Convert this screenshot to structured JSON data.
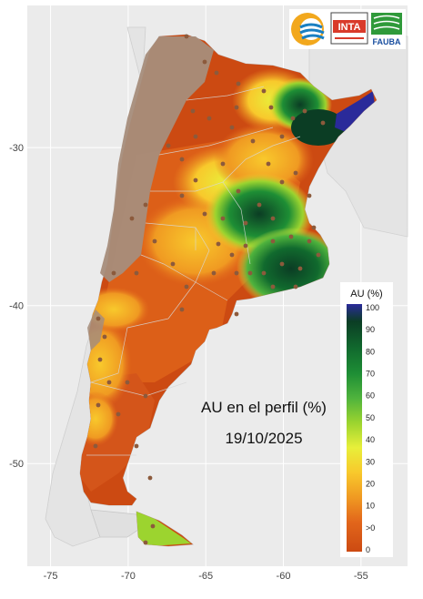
{
  "map": {
    "x_ticks": [
      {
        "lon": -75,
        "label": "-75"
      },
      {
        "lon": -70,
        "label": "-70"
      },
      {
        "lon": -65,
        "label": "-65"
      },
      {
        "lon": -60,
        "label": "-60"
      },
      {
        "lon": -55,
        "label": "-55"
      }
    ],
    "y_ticks": [
      {
        "lat": -30,
        "label": "-30"
      },
      {
        "lat": -40,
        "label": "-40"
      },
      {
        "lat": -50,
        "label": "-50"
      }
    ],
    "lon_range": [
      -76.5,
      -52.0
    ],
    "lat_range": [
      -56.5,
      -21.0
    ],
    "grid": true,
    "background_color": "#ebebeb",
    "gridline_color": "#ffffff"
  },
  "annotation": {
    "line1": "AU en el perfil (%)",
    "line2": "19/10/2025"
  },
  "legend": {
    "title": "AU (%)",
    "placement": "right",
    "labels": [
      "100",
      "90",
      "80",
      "70",
      "60",
      "50",
      "40",
      "30",
      "20",
      "10",
      ">0",
      "0"
    ],
    "colors": {
      "c100": "#2a2a9a",
      "c90": "#0b3d24",
      "c80": "#116a2e",
      "c70": "#1e8e35",
      "c60": "#4fb33d",
      "c50": "#9cd42f",
      "c40": "#e8ef3a",
      "c30": "#f8c92c",
      "c20": "#f09a22",
      "c10": "#e2661b",
      "c0": "#cc4a12"
    }
  },
  "colors": {
    "andes_brown": "#a68d7b",
    "dot": "#8c5a3c",
    "land_outside": "#e6e6e6",
    "border_line": "#c8c8c8"
  },
  "logos": {
    "conae": "conae-swirl-icon",
    "inta_text": "INTA",
    "fauba_text": "FAUBA"
  }
}
